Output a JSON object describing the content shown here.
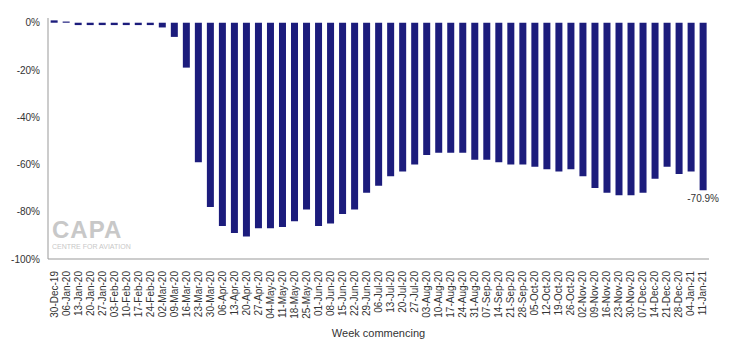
{
  "chart_data": {
    "type": "bar",
    "x_label": "Week commencing",
    "categories": [
      "30-Dec-19",
      "06-Jan-20",
      "13-Jan-20",
      "20-Jan-20",
      "27-Jan-20",
      "03-Feb-20",
      "10-Feb-20",
      "17-Feb-20",
      "24-Feb-20",
      "02-Mar-20",
      "09-Mar-20",
      "16-Mar-20",
      "23-Mar-20",
      "30-Mar-20",
      "06-Apr-20",
      "13-Apr-20",
      "20-Apr-20",
      "27-Apr-20",
      "04-May-20",
      "11-May-20",
      "18-May-20",
      "25-May-20",
      "01-Jun-20",
      "08-Jun-20",
      "15-Jun-20",
      "22-Jun-20",
      "29-Jun-20",
      "06-Jul-20",
      "13-Jul-20",
      "20-Jul-20",
      "27-Jul-20",
      "03-Aug-20",
      "10-Aug-20",
      "17-Aug-20",
      "24-Aug-20",
      "31-Aug-20",
      "07-Sep-20",
      "14-Sep-20",
      "21-Sep-20",
      "28-Sep-20",
      "05-Oct-20",
      "12-Oct-20",
      "19-Oct-20",
      "26-Oct-20",
      "02-Nov-20",
      "09-Nov-20",
      "16-Nov-20",
      "23-Nov-20",
      "30-Nov-20",
      "07-Dec-20",
      "14-Dec-20",
      "21-Dec-20",
      "28-Dec-20",
      "04-Jan-21",
      "11-Jan-21"
    ],
    "values": [
      1,
      0.5,
      -1,
      -1,
      -1,
      -1,
      -1,
      -1,
      -1,
      -2,
      -6,
      -19,
      -59,
      -78,
      -86,
      -89,
      -90.5,
      -87,
      -87,
      -86.5,
      -84,
      -79,
      -86,
      -85,
      -81,
      -79,
      -72,
      -69,
      -65,
      -63,
      -60,
      -56,
      -55,
      -55,
      -55,
      -58,
      -58,
      -59,
      -60,
      -60,
      -61,
      -62,
      -63,
      -62,
      -65,
      -70,
      -72,
      -73,
      -73,
      -72,
      -66,
      -61,
      -64,
      -63,
      -70.9
    ],
    "color": "#1c1c7c",
    "ylim": [
      -100,
      2
    ],
    "yticks": [
      {
        "value": -100,
        "label": "-100%"
      },
      {
        "value": -80,
        "label": "-80%"
      },
      {
        "value": -60,
        "label": "-60%"
      },
      {
        "value": -40,
        "label": "-40%"
      },
      {
        "value": -20,
        "label": "-20%"
      },
      {
        "value": 0,
        "label": "0%"
      }
    ],
    "grid": false,
    "annotations": [
      {
        "category": "11-Jan-21",
        "text": "-70.9%"
      }
    ],
    "watermark": {
      "title": "CAPA",
      "subtitle": "CENTRE FOR AVIATION"
    }
  }
}
